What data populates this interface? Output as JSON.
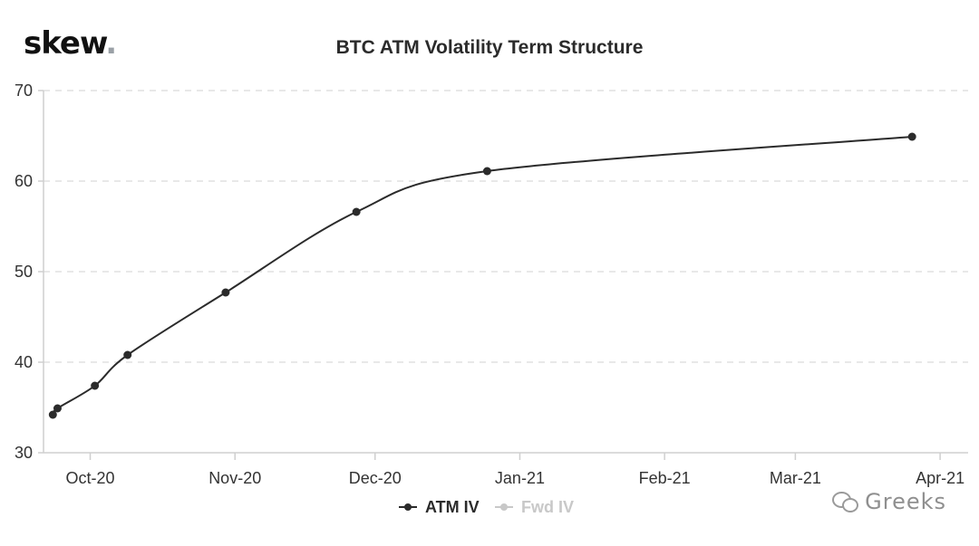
{
  "brand": {
    "name": "skew",
    "dot": "."
  },
  "watermark": {
    "text": "Greeks",
    "icon": "wechat-icon"
  },
  "colors": {
    "atm_line": "#2b2b2b",
    "fwd_inactive": "#c8c8c8",
    "grid": "#e0e0e0",
    "axis": "#cfcfcf"
  },
  "chart_data": {
    "type": "line",
    "title": "BTC ATM Volatility Term Structure",
    "xlabel": "",
    "ylabel": "",
    "x_type": "date",
    "xlim": [
      "2020-09-21",
      "2021-04-07"
    ],
    "ylim": [
      30,
      70
    ],
    "yticks": [
      30,
      40,
      50,
      60,
      70
    ],
    "xticks": [
      {
        "date": "2020-10-01",
        "label": "Oct-20"
      },
      {
        "date": "2020-11-01",
        "label": "Nov-20"
      },
      {
        "date": "2020-12-01",
        "label": "Dec-20"
      },
      {
        "date": "2021-01-01",
        "label": "Jan-21"
      },
      {
        "date": "2021-02-01",
        "label": "Feb-21"
      },
      {
        "date": "2021-03-01",
        "label": "Mar-21"
      },
      {
        "date": "2021-04-01",
        "label": "Apr-21"
      }
    ],
    "grid": "horizontal-dashed",
    "legend_position": "bottom",
    "series": [
      {
        "name": "ATM IV",
        "active": true,
        "points": [
          {
            "date": "2020-09-23",
            "value": 34.2
          },
          {
            "date": "2020-09-24",
            "value": 34.9
          },
          {
            "date": "2020-10-02",
            "value": 37.4
          },
          {
            "date": "2020-10-09",
            "value": 40.8
          },
          {
            "date": "2020-10-30",
            "value": 47.7
          },
          {
            "date": "2020-11-27",
            "value": 56.6
          },
          {
            "date": "2020-12-25",
            "value": 61.1
          },
          {
            "date": "2021-03-26",
            "value": 64.9
          }
        ]
      },
      {
        "name": "Fwd IV",
        "active": false,
        "points": []
      }
    ]
  }
}
